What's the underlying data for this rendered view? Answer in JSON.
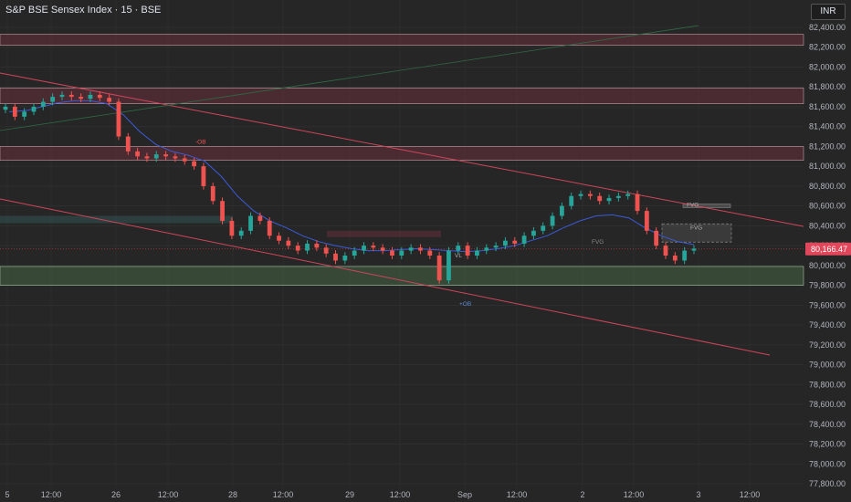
{
  "header": {
    "title": "S&P BSE Sensex Index · 15 · BSE",
    "currency": "INR"
  },
  "chart_data": {
    "type": "line",
    "title": "S&P BSE Sensex Index · 15 · BSE",
    "ylim": [
      77750,
      82600
    ],
    "y_ticks": [
      82400,
      82200,
      82000,
      81800,
      81600,
      81400,
      81200,
      81000,
      80800,
      80600,
      80400,
      80200,
      80000,
      79800,
      79600,
      79400,
      79200,
      79000,
      78800,
      78600,
      78400,
      78200,
      78000,
      77800
    ],
    "y_tick_labels": [
      "82,400.00",
      "82,200.00",
      "82,000.00",
      "81,800.00",
      "81,600.00",
      "81,400.00",
      "81,200.00",
      "81,000.00",
      "80,800.00",
      "80,600.00",
      "80,400.00",
      "80,200.00",
      "80,000.00",
      "79,800.00",
      "79,600.00",
      "79,400.00",
      "79,200.00",
      "79,000.00",
      "78,800.00",
      "78,600.00",
      "78,400.00",
      "78,200.00",
      "78,000.00",
      "77,800.00"
    ],
    "x_labels": [
      "5",
      "12:00",
      "26",
      "12:00",
      "28",
      "12:00",
      "29",
      "12:00",
      "Sep",
      "12:00",
      "2",
      "12:00",
      "3",
      "12:00"
    ],
    "grid": true,
    "last_price": 80166.47,
    "last_price_label": "80,166.47",
    "resistance_zones": [
      [
        82220,
        82330
      ],
      [
        81630,
        81790
      ],
      [
        81060,
        81200
      ]
    ],
    "support_zones": [
      [
        79800,
        79990
      ]
    ],
    "close_series": [
      81600,
      81500,
      81550,
      81600,
      81650,
      81700,
      81720,
      81700,
      81680,
      81720,
      81690,
      81650,
      81300,
      81150,
      81100,
      81080,
      81120,
      81100,
      81080,
      81050,
      81000,
      80800,
      80650,
      80450,
      80300,
      80350,
      80500,
      80450,
      80300,
      80250,
      80200,
      80150,
      80220,
      80180,
      80120,
      80050,
      80100,
      80150,
      80200,
      80180,
      80150,
      80100,
      80150,
      80180,
      80150,
      80100,
      79850,
      80150,
      80200,
      80100,
      80150,
      80180,
      80200,
      80250,
      80220,
      80300,
      80350,
      80400,
      80500,
      80600,
      80700,
      80720,
      80700,
      80650,
      80680,
      80700,
      80720,
      80550,
      80350,
      80200,
      80100,
      80050,
      80150,
      80170
    ],
    "ma_series": [
      81550,
      81560,
      81600,
      81640,
      81660,
      81660,
      81630,
      81520,
      81350,
      81220,
      81150,
      81110,
      81050,
      80900,
      80700,
      80550,
      80450,
      80380,
      80300,
      80240,
      80200,
      80170,
      80150,
      80150,
      80160,
      80170,
      80160,
      80150,
      80140,
      80150,
      80170,
      80200,
      80250,
      80300,
      80380,
      80450,
      80500,
      80510,
      80480,
      80380,
      80300,
      80240,
      80210
    ]
  },
  "annotations": {
    "ob_top": "-OB",
    "ob_bottom": "+OB",
    "fvg_1": "FVG",
    "fvg_2": "FVG",
    "fvg_3": "FVG",
    "vl": "VL"
  }
}
